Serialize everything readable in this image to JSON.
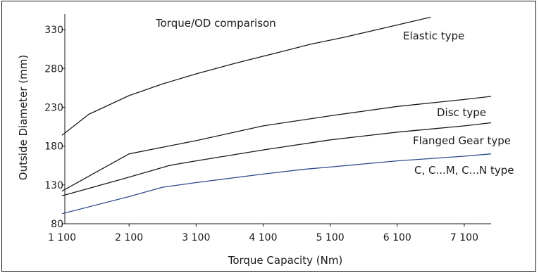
{
  "chart_data": {
    "type": "line",
    "title": "Torque/OD comparison",
    "xlabel": "Torque Capacity (Nm)",
    "ylabel": "Outside Diameter (mm)",
    "xlim": [
      1100,
      7500
    ],
    "ylim": [
      80,
      350
    ],
    "x_ticks": [
      1100,
      2100,
      3100,
      4100,
      5100,
      6100,
      7100
    ],
    "x_tick_labels": [
      "1 100",
      "2 100",
      "3 100",
      "4 100",
      "5 100",
      "6 100",
      "7 100"
    ],
    "y_ticks": [
      80,
      130,
      180,
      230,
      280,
      330
    ],
    "y_tick_labels": [
      "80",
      "130",
      "180",
      "230",
      "280",
      "330"
    ],
    "grid": false,
    "legend": "none",
    "series": [
      {
        "name": "Elastic type",
        "color": "#1a1a1a",
        "points": [
          [
            1100,
            194
          ],
          [
            1500,
            221
          ],
          [
            2100,
            245
          ],
          [
            2600,
            260
          ],
          [
            3100,
            273
          ],
          [
            3700,
            287
          ],
          [
            4300,
            300
          ],
          [
            4800,
            311
          ],
          [
            5300,
            320
          ],
          [
            5800,
            330
          ],
          [
            6200,
            338
          ],
          [
            6600,
            346
          ]
        ]
      },
      {
        "name": "Disc type",
        "color": "#1a1a1a",
        "points": [
          [
            1100,
            122
          ],
          [
            2100,
            170
          ],
          [
            3100,
            187
          ],
          [
            4100,
            206
          ],
          [
            5100,
            219
          ],
          [
            6100,
            231
          ],
          [
            7100,
            240
          ],
          [
            7500,
            244
          ]
        ]
      },
      {
        "name": "Flanged Gear type",
        "color": "#1a1a1a",
        "points": [
          [
            1100,
            116
          ],
          [
            2100,
            140
          ],
          [
            2700,
            155
          ],
          [
            3100,
            161
          ],
          [
            4100,
            175
          ],
          [
            5100,
            188
          ],
          [
            6100,
            198
          ],
          [
            7100,
            206
          ],
          [
            7500,
            210
          ]
        ]
      },
      {
        "name": "C, C...M, C...N type",
        "color": "#2b4a8c",
        "points": [
          [
            1100,
            93
          ],
          [
            2100,
            115
          ],
          [
            2600,
            127
          ],
          [
            3100,
            133
          ],
          [
            4100,
            144
          ],
          [
            4700,
            150
          ],
          [
            5100,
            153
          ],
          [
            6100,
            161
          ],
          [
            7100,
            167
          ],
          [
            7500,
            170
          ]
        ]
      }
    ]
  }
}
